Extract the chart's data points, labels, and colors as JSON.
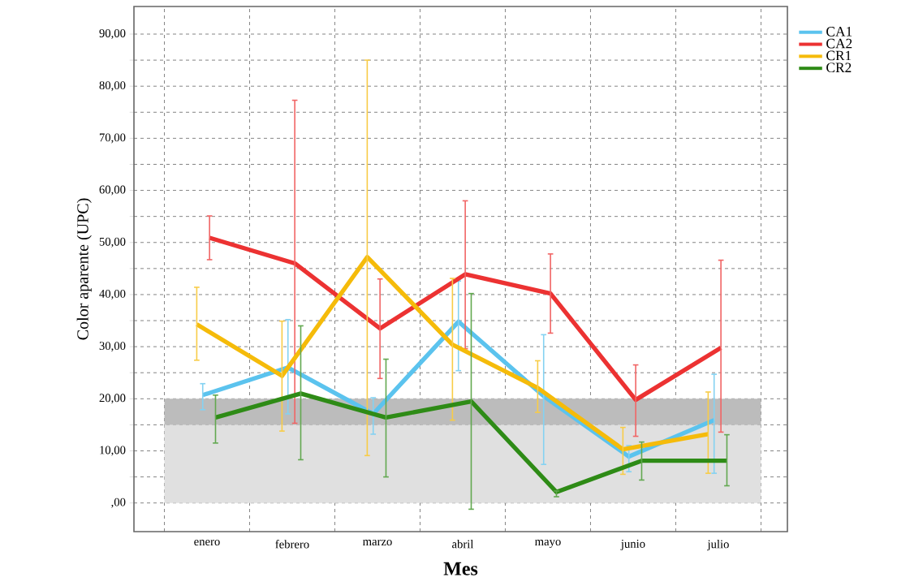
{
  "chart_data": {
    "type": "line",
    "xlabel": "Mes",
    "ylabel": "Color aparente (UPC)",
    "categories": [
      "enero",
      "febrero",
      "marzo",
      "abril",
      "mayo",
      "junio",
      "julio"
    ],
    "series": [
      {
        "name": "CA1",
        "color": "#5bc3ee",
        "values": [
          20.7,
          26.0,
          17.1,
          34.8,
          20.5,
          8.9,
          15.9
        ],
        "errors": [
          [
            17.9,
            22.9
          ],
          [
            17.1,
            35.2
          ],
          [
            13.2,
            20.2
          ],
          [
            25.4,
            42.6
          ],
          [
            7.4,
            32.3
          ],
          [
            6.0,
            11.0
          ],
          [
            5.7,
            24.7
          ]
        ]
      },
      {
        "name": "CA2",
        "color": "#ec3232",
        "values": [
          50.9,
          46.0,
          33.5,
          43.9,
          40.2,
          19.8,
          29.8
        ],
        "errors": [
          [
            46.7,
            55.1
          ],
          [
            15.3,
            77.3
          ],
          [
            23.9,
            43.0
          ],
          [
            29.6,
            58.0
          ],
          [
            32.6,
            47.8
          ],
          [
            12.8,
            26.5
          ],
          [
            13.6,
            46.6
          ]
        ]
      },
      {
        "name": "CR1",
        "color": "#f5bb0a",
        "values": [
          34.3,
          24.4,
          47.2,
          30.4,
          22.1,
          10.3,
          13.2
        ],
        "errors": [
          [
            27.4,
            41.4
          ],
          [
            13.8,
            34.9
          ],
          [
            9.1,
            85.0
          ],
          [
            15.9,
            43.1
          ],
          [
            17.4,
            27.3
          ],
          [
            5.5,
            14.5
          ],
          [
            5.7,
            21.3
          ]
        ]
      },
      {
        "name": "CR2",
        "color": "#2e8b16",
        "values": [
          16.4,
          21.0,
          16.4,
          19.5,
          2.1,
          8.1,
          8.1
        ],
        "errors": [
          [
            11.5,
            20.7
          ],
          [
            8.3,
            34.0
          ],
          [
            5.0,
            27.6
          ],
          [
            -1.2,
            40.2
          ],
          [
            1.2,
            2.3
          ],
          [
            4.4,
            11.7
          ],
          [
            3.3,
            13.1
          ]
        ]
      }
    ],
    "ylim": [
      -5.5,
      95.3
    ],
    "yticks": [
      {
        "value": 0,
        "label": ",00"
      },
      {
        "value": 5,
        "label": null
      },
      {
        "value": 10,
        "label": "10,00"
      },
      {
        "value": 15,
        "label": null
      },
      {
        "value": 20,
        "label": "20,00"
      },
      {
        "value": 25,
        "label": null
      },
      {
        "value": 30,
        "label": "30,00"
      },
      {
        "value": 35,
        "label": null
      },
      {
        "value": 40,
        "label": "40,00"
      },
      {
        "value": 45,
        "label": null
      },
      {
        "value": 50,
        "label": "50,00"
      },
      {
        "value": 55,
        "label": null
      },
      {
        "value": 60,
        "label": "60,00"
      },
      {
        "value": 65,
        "label": null
      },
      {
        "value": 70,
        "label": "70,00"
      },
      {
        "value": 75,
        "label": null
      },
      {
        "value": 80,
        "label": "80,00"
      },
      {
        "value": 85,
        "label": null
      },
      {
        "value": 90,
        "label": "90,00"
      }
    ],
    "bands": [
      {
        "axis": "y",
        "from": 0,
        "to": 15,
        "color": "#e0e0e0"
      },
      {
        "axis": "y",
        "from": 15,
        "to": 20,
        "color": "#bcbcbc"
      }
    ],
    "grid": true,
    "legend": "right",
    "marker": "none",
    "line_style": "solid"
  }
}
